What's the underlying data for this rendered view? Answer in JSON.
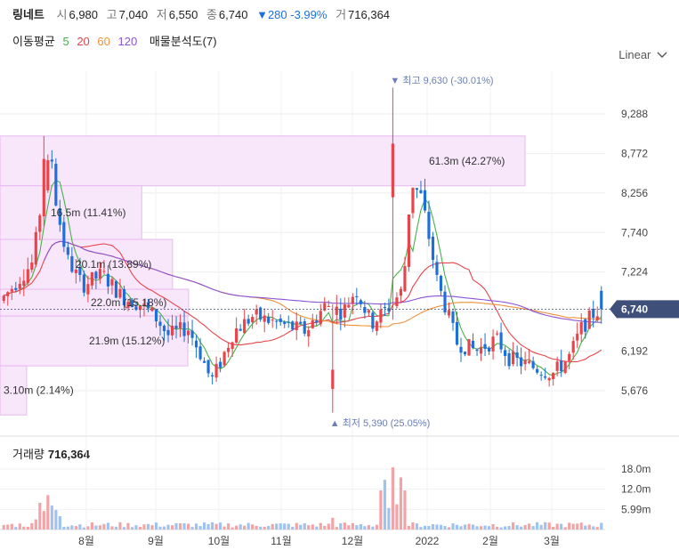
{
  "header": {
    "name": "링네트",
    "open_label": "시",
    "open": "6,980",
    "high_label": "고",
    "high": "7,040",
    "low_label": "저",
    "low": "6,550",
    "close_label": "종",
    "close": "6,740",
    "change": "▼280 -3.99%",
    "volume_label": "거",
    "volume": "716,364"
  },
  "ma_legend": {
    "title": "이동평균",
    "p5": "5",
    "p20": "20",
    "p60": "60",
    "p120": "120",
    "profile": "매물분석도(7)"
  },
  "scale_label": "Linear",
  "volume_panel": {
    "label": "거래량",
    "value": "716,364"
  },
  "colors": {
    "up": "#e8444a",
    "down": "#1e6fd9",
    "ma5": "#49b04b",
    "ma20": "#e8444a",
    "ma60": "#f0913a",
    "ma120": "#8a52d6",
    "profile_fill": "#f8e6fb",
    "profile_border": "#e6b9ee",
    "price_tag": "#3e4f7a"
  },
  "chart_data": {
    "type": "candlestick",
    "price_ticks": [
      "9,288",
      "8,772",
      "8,256",
      "7,740",
      "7,224",
      "6,192",
      "5,676"
    ],
    "current_price": "6,740",
    "max_annotation": "최고 9,630 (-30.01%)",
    "min_annotation": "최저 5,390 (25.05%)",
    "volume_ticks": [
      "18.0m",
      "12.0m",
      "5.99m"
    ],
    "x_labels": [
      "8월",
      "9월",
      "10월",
      "11월",
      "12월",
      "2022",
      "2월",
      "3월"
    ],
    "volume_profile": [
      {
        "price_from": 8350,
        "price_to": 9000,
        "label": "61.3m (42.27%)",
        "share": 42.27
      },
      {
        "price_from": 7650,
        "price_to": 8350,
        "label": "16.5m (11.41%)",
        "share": 11.41
      },
      {
        "price_from": 7000,
        "price_to": 7650,
        "label": "20.1m (13.89%)",
        "share": 13.89
      },
      {
        "price_from": 6650,
        "price_to": 7000,
        "label": "22.0m (15.18%)",
        "share": 15.18
      },
      {
        "price_from": 6000,
        "price_to": 6650,
        "label": "21.9m (15.12%)",
        "share": 15.12
      },
      {
        "price_from": 5360,
        "price_to": 6000,
        "label": "3.10m (2.14%)",
        "share": 2.14
      }
    ]
  }
}
